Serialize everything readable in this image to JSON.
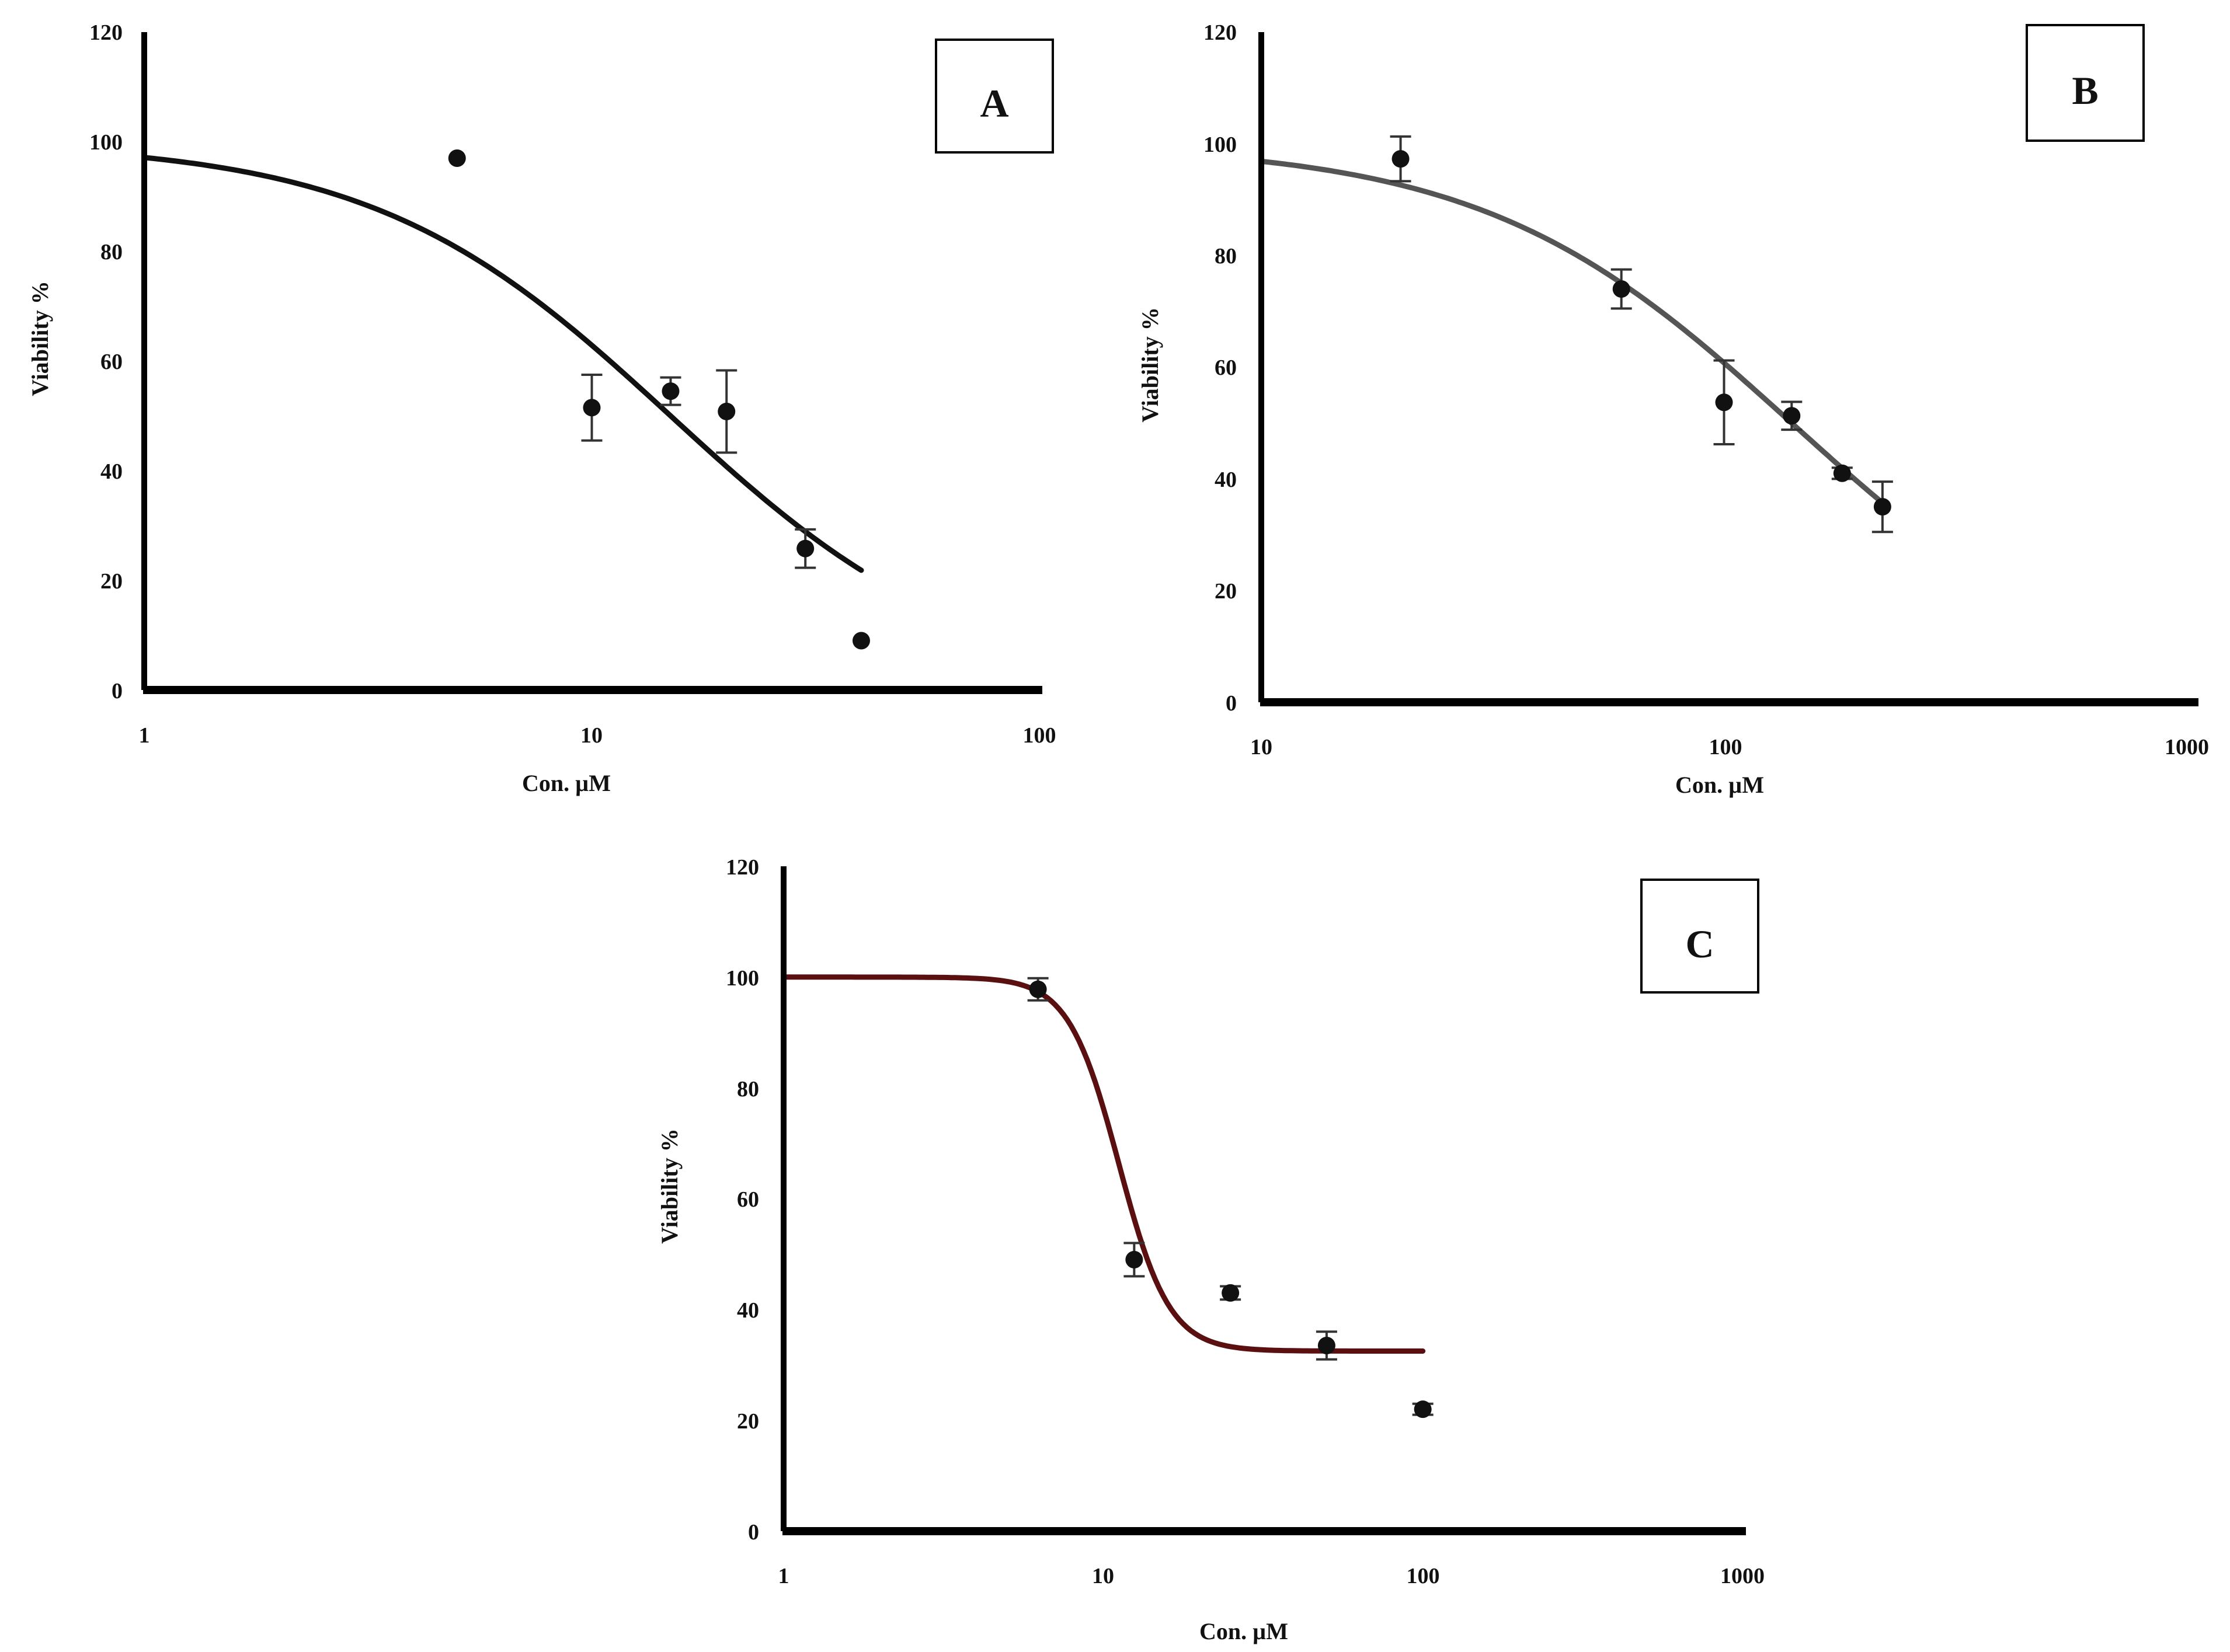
{
  "chart_data": [
    {
      "panel": "A",
      "type": "scatter",
      "x_scale": "log",
      "xlabel": "Con. µM",
      "ylabel": "Viability %",
      "xlim": [
        1,
        100
      ],
      "ylim": [
        0,
        120
      ],
      "x_ticks": [
        "1",
        "10",
        "100"
      ],
      "y_ticks": [
        "0",
        "20",
        "40",
        "60",
        "80",
        "100",
        "120"
      ],
      "curve_color": "#111111",
      "fit": {
        "top": 100,
        "bottom": 0,
        "ec50": 15,
        "hill": 1.3,
        "x_range": [
          1,
          40
        ]
      },
      "points": [
        {
          "x": 5,
          "y": 97,
          "err": 0
        },
        {
          "x": 10,
          "y": 51.5,
          "err": 6
        },
        {
          "x": 15,
          "y": 54.5,
          "err": 2.5
        },
        {
          "x": 20,
          "y": 50.8,
          "err": 7.5
        },
        {
          "x": 30,
          "y": 25.8,
          "err": 3.5
        },
        {
          "x": 40,
          "y": 9,
          "err": 0
        }
      ]
    },
    {
      "panel": "B",
      "type": "scatter",
      "x_scale": "log",
      "xlabel": "Con. µM",
      "ylabel": "Viability %",
      "xlim": [
        10,
        1000
      ],
      "ylim": [
        0,
        120
      ],
      "x_ticks": [
        "10",
        "100",
        "1000"
      ],
      "y_ticks": [
        "0",
        "20",
        "40",
        "60",
        "80",
        "100",
        "120"
      ],
      "curve_color": "#555555",
      "fit": {
        "top": 100,
        "bottom": 0,
        "ec50": 140,
        "hill": 1.3,
        "x_range": [
          10,
          220
        ]
      },
      "points": [
        {
          "x": 20,
          "y": 97.3,
          "err": 4
        },
        {
          "x": 60,
          "y": 74,
          "err": 3.5
        },
        {
          "x": 100,
          "y": 53.7,
          "err": 7.5
        },
        {
          "x": 140,
          "y": 51.3,
          "err": 2.5
        },
        {
          "x": 180,
          "y": 41,
          "err": 1
        },
        {
          "x": 220,
          "y": 35,
          "err": 4.5
        }
      ]
    },
    {
      "panel": "C",
      "type": "scatter",
      "x_scale": "log",
      "xlabel": "Con. µM",
      "ylabel": "Viability %",
      "xlim": [
        1,
        1000
      ],
      "ylim": [
        0,
        120
      ],
      "x_ticks": [
        "1",
        "10",
        "100",
        "1000"
      ],
      "y_ticks": [
        "0",
        "20",
        "40",
        "60",
        "80",
        "100",
        "120"
      ],
      "curve_color": "#5a1010",
      "fit": {
        "top": 100,
        "bottom": 32.5,
        "ec50": 11.2,
        "hill": 5.5,
        "x_range": [
          1,
          100
        ]
      },
      "points": [
        {
          "x": 6.25,
          "y": 97.8,
          "err": 2
        },
        {
          "x": 12.5,
          "y": 49,
          "err": 3
        },
        {
          "x": 25,
          "y": 43,
          "err": 1.2
        },
        {
          "x": 50,
          "y": 33.5,
          "err": 2.5
        },
        {
          "x": 100,
          "y": 22,
          "err": 1
        }
      ]
    }
  ]
}
